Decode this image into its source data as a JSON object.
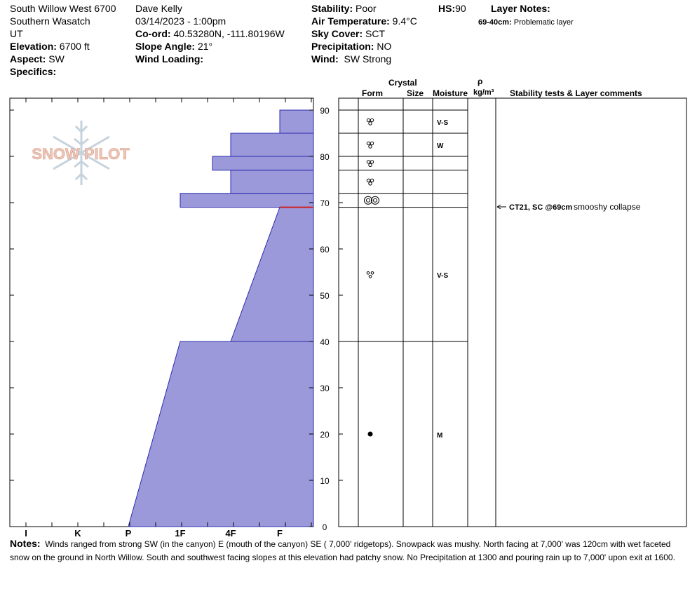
{
  "header": {
    "location": "South Willow West 6700",
    "range": "Southern Wasatch",
    "state": "UT",
    "elevation_label": "Elevation:",
    "elevation_value": "6700 ft",
    "aspect_label": "Aspect:",
    "aspect_value": "SW",
    "specifics_label": "Specifics:",
    "observer": "Dave Kelly",
    "datetime": "03/14/2023 - 1:00pm",
    "coord_label": "Co-ord:",
    "coord_value": "40.53280N, -111.80196W",
    "slope_label": "Slope Angle:",
    "slope_value": "21°",
    "wind_loading_label": "Wind Loading:",
    "stability_label": "Stability:",
    "stability_value": "Poor",
    "air_temp_label": "Air Temperature:",
    "air_temp_value": "9.4°C",
    "sky_label": "Sky Cover:",
    "sky_value": "SCT",
    "precip_label": "Precipitation:",
    "precip_value": "NO",
    "wind_label": "Wind:",
    "wind_value": "SW Strong",
    "hs_label": "HS:",
    "hs_value": "90",
    "layer_notes_label": "Layer Notes:",
    "layer_note_depth": "69-40cm:",
    "layer_note_text": "Problematic layer"
  },
  "logo": {
    "text": "SNOW PILOT"
  },
  "columns": {
    "crystal": "Crystal",
    "form": "Form",
    "size": "Size",
    "moisture": "Moisture",
    "rho": "ρ",
    "density_unit": "kg/m³",
    "stability": "Stability tests & Layer comments"
  },
  "hardness_axis": [
    "I",
    "K",
    "P",
    "1F",
    "4F",
    "F"
  ],
  "depth_ticks": [
    "90",
    "80",
    "70",
    "60",
    "50",
    "40",
    "30",
    "20",
    "10",
    "0"
  ],
  "chart_data": {
    "type": "area",
    "x_axis": "hand hardness",
    "x_categories": [
      "I",
      "K",
      "P",
      "1F",
      "4F",
      "F"
    ],
    "y_range": [
      0,
      90
    ],
    "hardness_profile": [
      {
        "top": 90,
        "bottom": 85,
        "top_hardness": "F",
        "bottom_hardness": "F"
      },
      {
        "top": 85,
        "bottom": 80,
        "top_hardness": "4F",
        "bottom_hardness": "4F"
      },
      {
        "top": 80,
        "bottom": 77,
        "top_hardness": "4F-1F",
        "bottom_hardness": "4F-1F"
      },
      {
        "top": 77,
        "bottom": 72,
        "top_hardness": "4F",
        "bottom_hardness": "4F"
      },
      {
        "top": 72,
        "bottom": 69,
        "top_hardness": "1F",
        "bottom_hardness": "1F"
      },
      {
        "top": 69,
        "bottom": 40,
        "top_hardness": "F",
        "bottom_hardness": "4F"
      },
      {
        "top": 40,
        "bottom": 0,
        "top_hardness": "1F",
        "bottom_hardness": "P"
      }
    ],
    "layer_boundaries": [
      90,
      85,
      80,
      77,
      72,
      69,
      40,
      0
    ],
    "layers": [
      {
        "depth_center": 87.5,
        "form": "wet grains (clustered)",
        "moisture": "V-S"
      },
      {
        "depth_center": 82.5,
        "form": "wet grains (clustered)",
        "moisture": "W"
      },
      {
        "depth_center": 78.5,
        "form": "wet grains (clustered)",
        "moisture": ""
      },
      {
        "depth_center": 74.5,
        "form": "wet grains (clustered)",
        "moisture": ""
      },
      {
        "depth_center": 70.5,
        "form": "rounded grains",
        "moisture": ""
      },
      {
        "depth_center": 54.5,
        "form": "wet grains",
        "moisture": "V-S"
      },
      {
        "depth_center": 20,
        "form": "ice formation",
        "moisture": "M"
      }
    ],
    "problem_layer_depth": 69
  },
  "stability_test": {
    "depth": 69,
    "code": "CT21, SC @69cm",
    "comment": "smooshy collapse"
  },
  "notes": {
    "label": "Notes:",
    "text": "Winds ranged from strong SW (in the canyon) E (mouth of the canyon) SE ( 7,000' ridgetops). Snowpack was mushy. North facing at 7,000' was 120cm with wet faceted snow on the ground in North Willow. South and southwest facing slopes at this elevation had patchy snow. No Precipitation at 1300 and pouring rain up to 7,000' upon exit at 1600."
  },
  "colors": {
    "profile_fill": "#9b99d9",
    "profile_stroke": "#2b2bb0",
    "problem_line": "#cc2222",
    "logo_text": "#efc6b8",
    "logo_flake": "#c7d3dc"
  }
}
